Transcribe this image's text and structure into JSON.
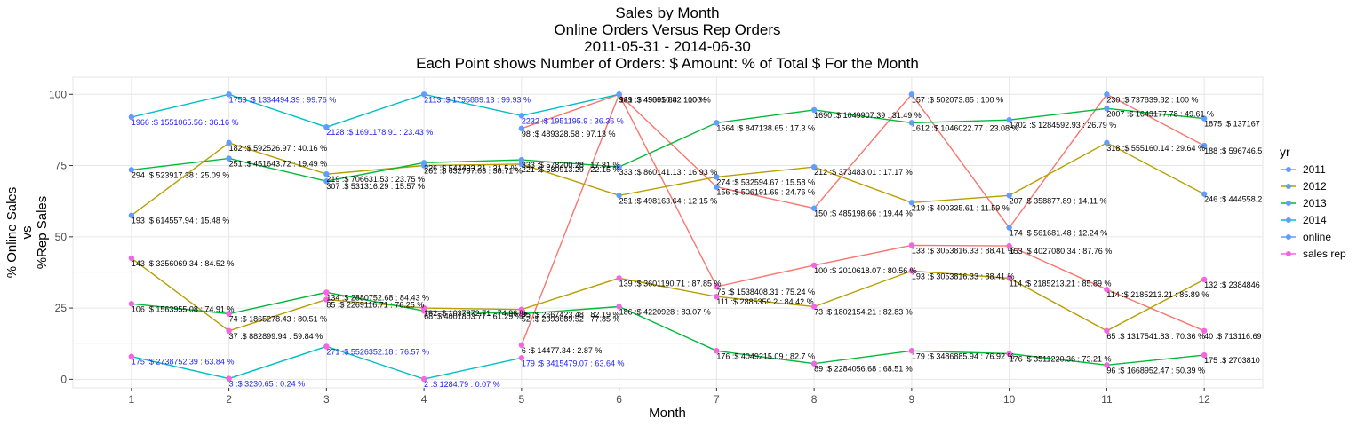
{
  "chart_data": {
    "type": "line",
    "title": [
      "Sales by Month",
      "Online Orders Versus Rep Orders",
      "2011-05-31  -  2014-06-30",
      "Each Point shows Number of Orders: $ Amount: % of Total $ For the Month"
    ],
    "xlabel": "Month",
    "ylabel": [
      "% Online Sales",
      "vs",
      "%Rep Sales"
    ],
    "x": [
      1,
      2,
      3,
      4,
      5,
      6,
      7,
      8,
      9,
      10,
      11,
      12
    ],
    "xlim": [
      0.4,
      12.6
    ],
    "ylim": [
      -3,
      106
    ],
    "yticks": [
      0,
      25,
      50,
      75,
      100
    ],
    "grid": true,
    "legend_title": "yr",
    "legend_position": "right",
    "legend": [
      {
        "label": "2011",
        "color": "#F8766D",
        "kind": "line"
      },
      {
        "label": "2012",
        "color": "#B79F00",
        "kind": "line"
      },
      {
        "label": "2013",
        "color": "#00BA38",
        "kind": "line"
      },
      {
        "label": "2014",
        "color": "#00BFC4",
        "kind": "line"
      },
      {
        "label": "online",
        "color": "#619CFF",
        "kind": "point"
      },
      {
        "label": "sales rep",
        "color": "#F564E3",
        "kind": "point"
      }
    ],
    "series": [
      {
        "name": "2011",
        "color": "#F8766D",
        "type": "online",
        "points": [
          [
            5,
            88,
            "98 :$ 489328.58 : 97.13 %"
          ],
          [
            6,
            100,
            "141 :$ 458910.82 : 100 %"
          ],
          [
            7,
            67.5,
            "156 :$ 506191.69 : 24.76 %"
          ],
          [
            8,
            60,
            "150 :$ 485198.66 : 19.44 %"
          ],
          [
            9,
            100,
            "157 :$ 502073.85 : 100 %"
          ],
          [
            10,
            53.2,
            "174 :$ 561681.48 : 12.24 %"
          ],
          [
            11,
            100,
            "230 :$ 737839.82 : 100 %"
          ],
          [
            12,
            82,
            "188 :$ 596746.5"
          ]
        ]
      },
      {
        "name": "2011",
        "color": "#F8766D",
        "type": "sales rep",
        "points": [
          [
            5,
            12,
            "6 :$ 14477.34 : 2.87 %"
          ],
          [
            6,
            100,
            "939 :$ 49005.84 : 100 %"
          ],
          [
            7,
            32.5,
            "75 :$ 1538408.31 : 75.24 %"
          ],
          [
            8,
            40,
            "100 :$ 2010618.07 : 80.56 %"
          ],
          [
            9,
            47,
            "133 :$ 3053816.33 : 88.41 %"
          ],
          [
            10,
            46.8,
            "153 :$ 4027080.34 : 87.76 %"
          ],
          [
            11,
            31.5,
            "114 :$ 2185213.21 : 85.89 %"
          ],
          [
            12,
            17,
            "40 :$ 713116.69"
          ]
        ]
      },
      {
        "name": "2012",
        "color": "#B79F00",
        "type": "online",
        "points": [
          [
            1,
            57.5,
            "193 :$ 614557.94 : 15.48 %"
          ],
          [
            2,
            83,
            "182 :$ 592526.97 : 40.16 %"
          ],
          [
            3,
            72,
            "219 :$ 706631.53 : 23.75 %"
          ],
          [
            4,
            75,
            "261 :$ 632797.03 : 38.71 %"
          ],
          [
            5,
            75.5,
            "221 :$ 680913.29 : 22.15 %"
          ],
          [
            6,
            64.5,
            "251 :$ 498163.64 : 12.15 %"
          ],
          [
            7,
            71,
            "274 :$ 532594.67 : 15.58 %"
          ],
          [
            8,
            74.5,
            "212 :$ 373483.01 : 17.17 %"
          ],
          [
            9,
            62,
            "219 :$ 400335.61 : 11.59 %"
          ],
          [
            10,
            64.5,
            "207 :$ 358877.89 : 14.11 %"
          ],
          [
            11,
            83,
            "318 :$ 555160.14 : 29.64 %"
          ],
          [
            12,
            65,
            "246 :$ 444558.2"
          ]
        ]
      },
      {
        "name": "2012",
        "color": "#B79F00",
        "type": "sales rep",
        "points": [
          [
            1,
            42.5,
            "143 :$ 3356069.34 : 84.52 %"
          ],
          [
            2,
            17,
            "37 :$ 882899.94 : 59.84 %"
          ],
          [
            3,
            28,
            "85 :$ 2269116.71 : 76.25 %"
          ],
          [
            4,
            25,
            "162 :$ 1037872.71 : 74.96 %"
          ],
          [
            5,
            24.5,
            "95 :$ 2667423.48 : 82.19 %"
          ],
          [
            6,
            35.5,
            "139 :$ 3601190.71 : 87.85 %"
          ],
          [
            7,
            29,
            "111 :$ 2885359.2 : 84.42 %"
          ],
          [
            8,
            25.5,
            "73 :$ 1802154.21 : 82.83 %"
          ],
          [
            9,
            38,
            "193 :$ 3053816.33 : 88.41 %"
          ],
          [
            10,
            35.5,
            "114 :$ 2185213.21 : 85.89 %"
          ],
          [
            11,
            17,
            "65 :$ 1317541.83 : 70.36 %"
          ],
          [
            12,
            35,
            "132 :$ 2384846"
          ]
        ]
      },
      {
        "name": "2013",
        "color": "#00BA38",
        "type": "online",
        "points": [
          [
            1,
            73.5,
            "294 :$ 523917.38 : 25.09 %"
          ],
          [
            2,
            77.5,
            "251 :$ 451643.72 : 19.49 %"
          ],
          [
            3,
            69.5,
            "307 :$ 531316.29 : 15.57 %"
          ],
          [
            4,
            76,
            "326 :$ 544493.21 : 21.5 %"
          ],
          [
            5,
            77,
            "333 :$ 578200.28 : 17.81 %"
          ],
          [
            6,
            74.5,
            "333 :$ 860141.13 : 16.93 %"
          ],
          [
            7,
            90,
            "1564 :$ 847138.65 : 17.3 %"
          ],
          [
            8,
            94.5,
            "1690 :$ 1049907.39 : 31.49 %"
          ],
          [
            9,
            90,
            "1612 :$ 1046022.77 : 23.08 %"
          ],
          [
            10,
            91,
            "1702 :$ 1284592.93 : 26.79 %"
          ],
          [
            11,
            95,
            "2007 :$ 1643177.78 : 49.61 %"
          ],
          [
            12,
            91.5,
            "1875 :$ 137167"
          ]
        ]
      },
      {
        "name": "2013",
        "color": "#00BA38",
        "type": "sales rep",
        "points": [
          [
            1,
            26.5,
            "106 :$ 1563955.08 : 74.91 %"
          ],
          [
            2,
            23,
            "74 :$ 1865278.43 : 80.51 %"
          ],
          [
            3,
            30.5,
            "134 :$ 2880752.68 : 84.43 %"
          ],
          [
            4,
            24,
            "68 :$ 4001803.77 : 61.29 %"
          ],
          [
            5,
            23,
            "52 :$ 2393689.52 : 77.85 %"
          ],
          [
            6,
            25.5,
            "186 :$ 4220928 : 83.07 %"
          ],
          [
            7,
            10,
            "176 :$ 4049215.09 : 82.7 %"
          ],
          [
            8,
            5.5,
            "89 :$ 2284056.68 : 68.51 %"
          ],
          [
            9,
            10,
            "179 :$ 3486885.94 : 76.92 %"
          ],
          [
            10,
            9,
            "176 :$ 3511220.36 : 73.21 %"
          ],
          [
            11,
            5,
            "96 :$ 1668952.47 : 50.39 %"
          ],
          [
            12,
            8.5,
            "175 :$ 2703810"
          ]
        ]
      },
      {
        "name": "2014",
        "color": "#00BFC4",
        "type": "online",
        "points": [
          [
            1,
            92,
            "1966 :$ 1551065.56 : 36.16 %"
          ],
          [
            2,
            100,
            "1753 :$ 1334494.39 : 99.76 %"
          ],
          [
            3,
            88.5,
            "2128 :$ 1691178.91 : 23.43 %"
          ],
          [
            4,
            100,
            "2113 :$ 1795889.13 : 99.93 %"
          ],
          [
            5,
            92.5,
            "2232 :$ 1951195.9 : 36.36 %"
          ],
          [
            6,
            100,
            ""
          ]
        ]
      },
      {
        "name": "2014",
        "color": "#00BFC4",
        "type": "sales rep",
        "points": [
          [
            1,
            8,
            "175 :$ 2738752.39 : 63.84 %"
          ],
          [
            2,
            0.25,
            "3 :$ 3230.65 : 0.24 %"
          ],
          [
            3,
            11.5,
            "271 :$ 5526352.18 : 76.57 %"
          ],
          [
            4,
            0.1,
            "2 :$ 1284.79 : 0.07 %"
          ],
          [
            5,
            7.5,
            "179 :$ 3415479.07 : 63.64 %"
          ]
        ]
      }
    ]
  }
}
